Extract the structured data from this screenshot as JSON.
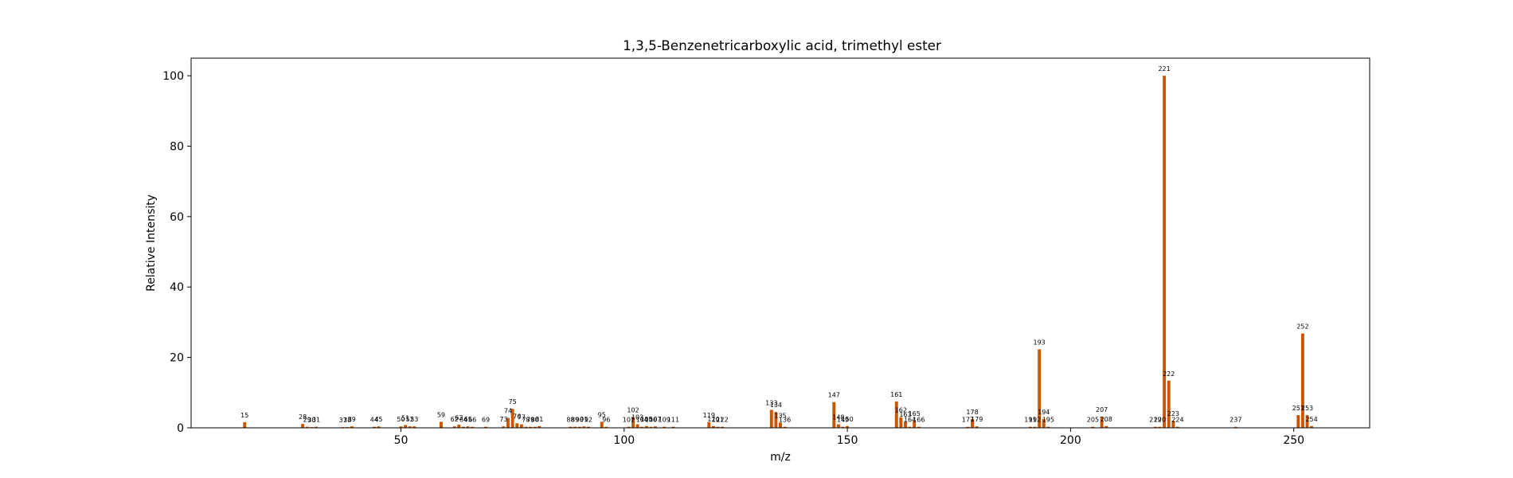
{
  "chart_data": {
    "type": "bar",
    "title": "1,3,5-Benzenetricarboxylic acid, trimethyl ester",
    "xlabel": "m/z",
    "ylabel": "Relative Intensity",
    "xlim": [
      3,
      267
    ],
    "ylim": [
      0,
      105
    ],
    "xticks": [
      50,
      100,
      150,
      200,
      250
    ],
    "yticks": [
      0,
      20,
      40,
      60,
      80,
      100
    ],
    "bar_color": "#cc5500",
    "grid": false,
    "legend": "none",
    "peaks": [
      {
        "mz": 15,
        "intensity": 1.6
      },
      {
        "mz": 28,
        "intensity": 1.1
      },
      {
        "mz": 29,
        "intensity": 0.3
      },
      {
        "mz": 30,
        "intensity": 0.2
      },
      {
        "mz": 31,
        "intensity": 0.3
      },
      {
        "mz": 37,
        "intensity": 0.2
      },
      {
        "mz": 38,
        "intensity": 0.2
      },
      {
        "mz": 39,
        "intensity": 0.4
      },
      {
        "mz": 44,
        "intensity": 0.3
      },
      {
        "mz": 45,
        "intensity": 0.4
      },
      {
        "mz": 50,
        "intensity": 0.4
      },
      {
        "mz": 51,
        "intensity": 0.8
      },
      {
        "mz": 52,
        "intensity": 0.4
      },
      {
        "mz": 53,
        "intensity": 0.4
      },
      {
        "mz": 59,
        "intensity": 1.7
      },
      {
        "mz": 62,
        "intensity": 0.4
      },
      {
        "mz": 63,
        "intensity": 0.9
      },
      {
        "mz": 64,
        "intensity": 0.3
      },
      {
        "mz": 65,
        "intensity": 0.4
      },
      {
        "mz": 66,
        "intensity": 0.3
      },
      {
        "mz": 69,
        "intensity": 0.3
      },
      {
        "mz": 73,
        "intensity": 0.4
      },
      {
        "mz": 74,
        "intensity": 2.8
      },
      {
        "mz": 75,
        "intensity": 5.4
      },
      {
        "mz": 76,
        "intensity": 1.3
      },
      {
        "mz": 77,
        "intensity": 1.0
      },
      {
        "mz": 78,
        "intensity": 0.3
      },
      {
        "mz": 79,
        "intensity": 0.3
      },
      {
        "mz": 80,
        "intensity": 0.3
      },
      {
        "mz": 81,
        "intensity": 0.5
      },
      {
        "mz": 88,
        "intensity": 0.3
      },
      {
        "mz": 89,
        "intensity": 0.3
      },
      {
        "mz": 90,
        "intensity": 0.3
      },
      {
        "mz": 91,
        "intensity": 0.4
      },
      {
        "mz": 92,
        "intensity": 0.3
      },
      {
        "mz": 95,
        "intensity": 1.7
      },
      {
        "mz": 96,
        "intensity": 0.3
      },
      {
        "mz": 101,
        "intensity": 0.3
      },
      {
        "mz": 102,
        "intensity": 3.0
      },
      {
        "mz": 103,
        "intensity": 1.0
      },
      {
        "mz": 104,
        "intensity": 0.3
      },
      {
        "mz": 105,
        "intensity": 0.5
      },
      {
        "mz": 106,
        "intensity": 0.3
      },
      {
        "mz": 107,
        "intensity": 0.4
      },
      {
        "mz": 109,
        "intensity": 0.3
      },
      {
        "mz": 111,
        "intensity": 0.3
      },
      {
        "mz": 119,
        "intensity": 1.6
      },
      {
        "mz": 120,
        "intensity": 0.5
      },
      {
        "mz": 121,
        "intensity": 0.3
      },
      {
        "mz": 122,
        "intensity": 0.3
      },
      {
        "mz": 133,
        "intensity": 5.1
      },
      {
        "mz": 134,
        "intensity": 4.5
      },
      {
        "mz": 135,
        "intensity": 1.5
      },
      {
        "mz": 136,
        "intensity": 0.3
      },
      {
        "mz": 147,
        "intensity": 7.3
      },
      {
        "mz": 148,
        "intensity": 1.0
      },
      {
        "mz": 149,
        "intensity": 0.3
      },
      {
        "mz": 150,
        "intensity": 0.5
      },
      {
        "mz": 161,
        "intensity": 7.5
      },
      {
        "mz": 162,
        "intensity": 3.0
      },
      {
        "mz": 163,
        "intensity": 1.8
      },
      {
        "mz": 164,
        "intensity": 0.3
      },
      {
        "mz": 165,
        "intensity": 2.0
      },
      {
        "mz": 166,
        "intensity": 0.3
      },
      {
        "mz": 177,
        "intensity": 0.3
      },
      {
        "mz": 178,
        "intensity": 2.5
      },
      {
        "mz": 179,
        "intensity": 0.4
      },
      {
        "mz": 191,
        "intensity": 0.3
      },
      {
        "mz": 192,
        "intensity": 0.3
      },
      {
        "mz": 193,
        "intensity": 22.3
      },
      {
        "mz": 194,
        "intensity": 2.5
      },
      {
        "mz": 195,
        "intensity": 0.3
      },
      {
        "mz": 205,
        "intensity": 0.3
      },
      {
        "mz": 207,
        "intensity": 3.2
      },
      {
        "mz": 208,
        "intensity": 0.5
      },
      {
        "mz": 219,
        "intensity": 0.3
      },
      {
        "mz": 220,
        "intensity": 0.3
      },
      {
        "mz": 221,
        "intensity": 100.0
      },
      {
        "mz": 222,
        "intensity": 13.4
      },
      {
        "mz": 223,
        "intensity": 2.0
      },
      {
        "mz": 224,
        "intensity": 0.3
      },
      {
        "mz": 237,
        "intensity": 0.3
      },
      {
        "mz": 251,
        "intensity": 3.6
      },
      {
        "mz": 252,
        "intensity": 26.8
      },
      {
        "mz": 253,
        "intensity": 3.6
      },
      {
        "mz": 254,
        "intensity": 0.5
      }
    ]
  }
}
